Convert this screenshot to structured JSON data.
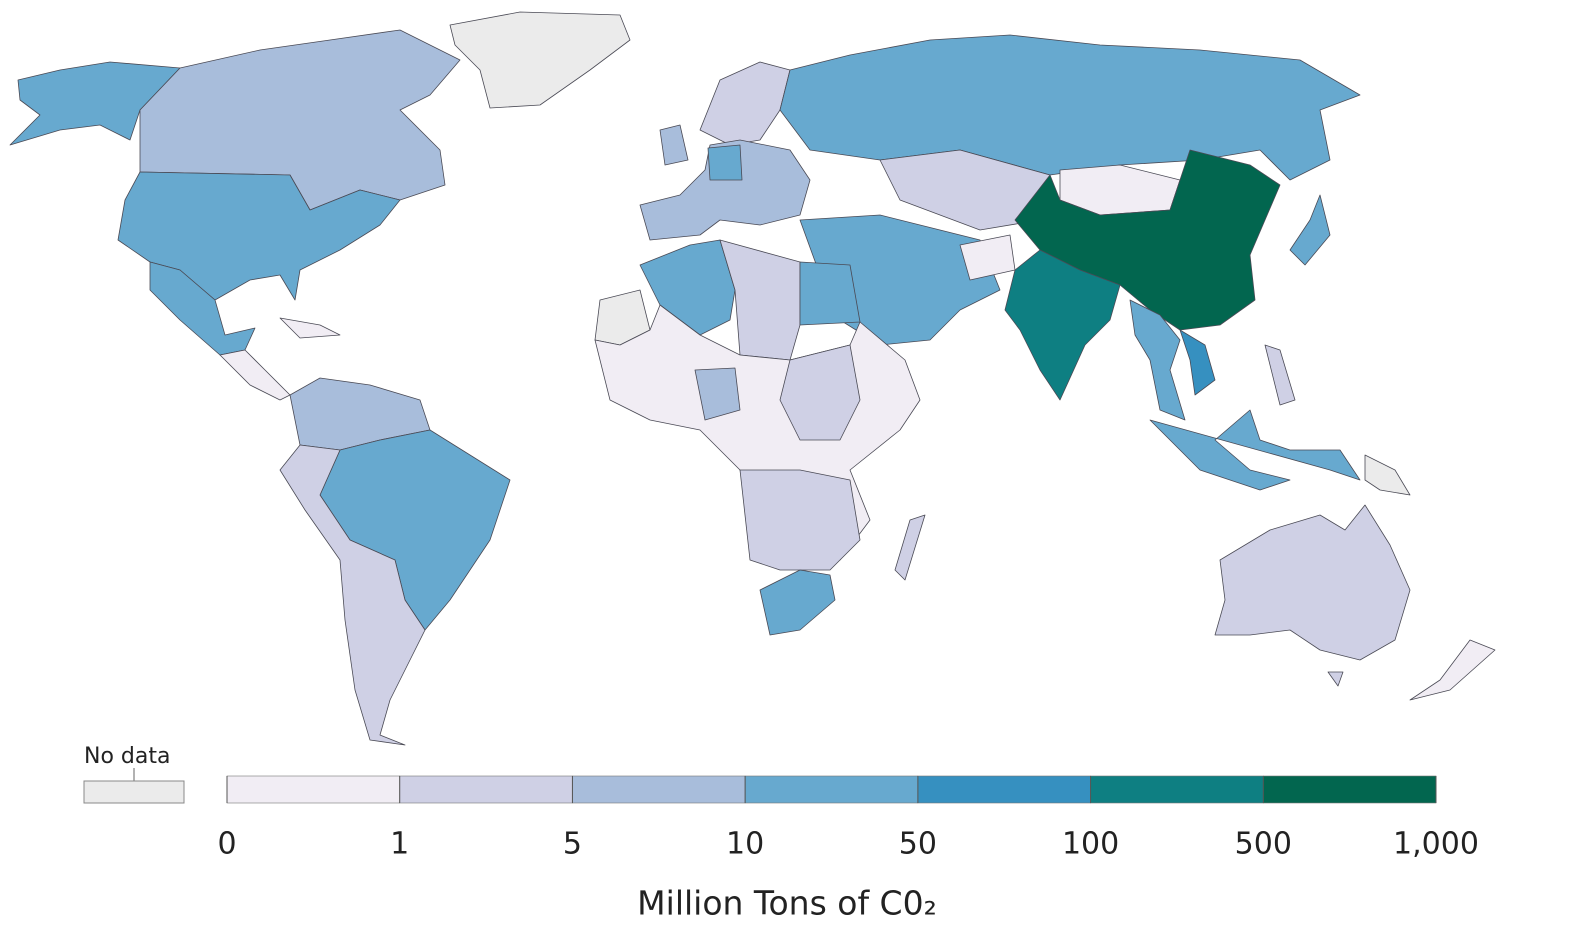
{
  "chart_data": {
    "type": "choropleth",
    "title": "Million Tons of C0₂",
    "no_data_label": "No data",
    "no_data_color": "#ebebeb",
    "xticks": [
      0,
      1,
      5,
      10,
      50,
      100,
      500,
      {
        "value": 1000,
        "label": "1,000"
      }
    ],
    "colors": [
      "#f1edf4",
      "#cfd0e5",
      "#a8bddb",
      "#67a9cf",
      "#3690c0",
      "#0e7f82",
      "#02664f"
    ]
  }
}
